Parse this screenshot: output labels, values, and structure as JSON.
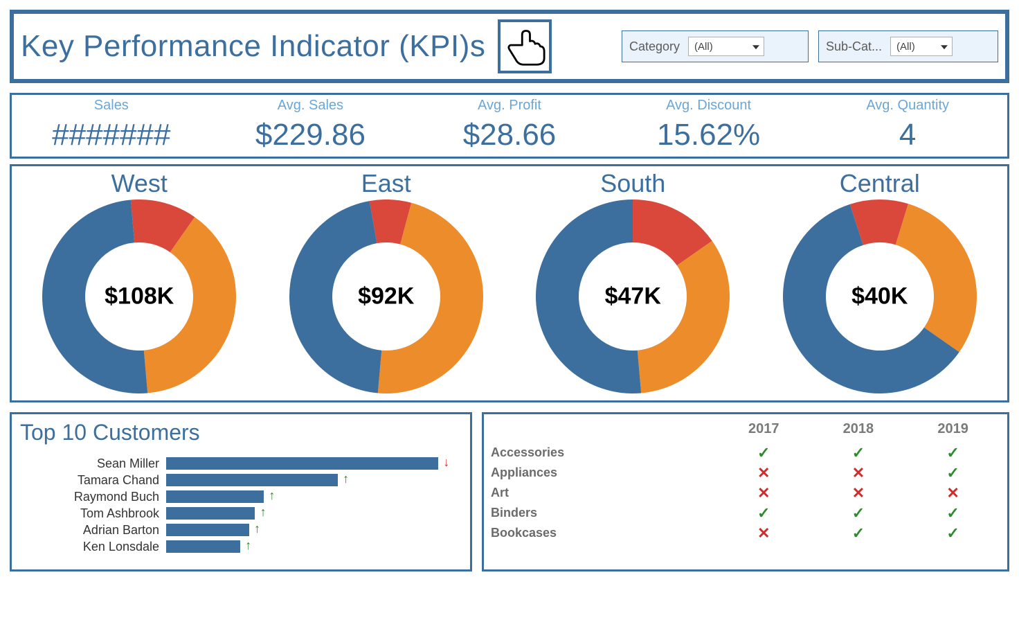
{
  "colors": {
    "frame": "#3d6f9e",
    "label_light": "#6aa7d6",
    "bar": "#3d6f9e",
    "donut_blue": "#3d6f9e",
    "donut_orange": "#ed8c2b",
    "donut_red": "#d9483b",
    "check": "#2e8b2e",
    "cross": "#d02c2c",
    "filter_bg": "#eaf3fb",
    "grey_text": "#6b6b6b"
  },
  "header": {
    "title": "Key Performance Indicator (KPI)s",
    "filters": [
      {
        "label": "Category",
        "value": "(All)"
      },
      {
        "label": "Sub-Cat...",
        "value": "(All)"
      }
    ]
  },
  "kpis": [
    {
      "label": "Sales",
      "value": "#######"
    },
    {
      "label": "Avg. Sales",
      "value": "$229.86"
    },
    {
      "label": "Avg. Profit",
      "value": "$28.66"
    },
    {
      "label": "Avg. Discount",
      "value": "15.62%"
    },
    {
      "label": "Avg. Quantity",
      "value": "4"
    }
  ],
  "donuts": {
    "ring_thickness": 62,
    "outer_radius": 140,
    "items": [
      {
        "title": "West",
        "center": "$108K",
        "slices": [
          {
            "color": "#d9483b",
            "start": -5,
            "sweep": 40
          },
          {
            "color": "#ed8c2b",
            "start": 35,
            "sweep": 140
          },
          {
            "color": "#3d6f9e",
            "start": 175,
            "sweep": 180
          }
        ]
      },
      {
        "title": "East",
        "center": "$92K",
        "slices": [
          {
            "color": "#d9483b",
            "start": -10,
            "sweep": 25
          },
          {
            "color": "#ed8c2b",
            "start": 15,
            "sweep": 170
          },
          {
            "color": "#3d6f9e",
            "start": 185,
            "sweep": 165
          }
        ]
      },
      {
        "title": "South",
        "center": "$47K",
        "slices": [
          {
            "color": "#d9483b",
            "start": 0,
            "sweep": 55
          },
          {
            "color": "#ed8c2b",
            "start": 55,
            "sweep": 120
          },
          {
            "color": "#3d6f9e",
            "start": 175,
            "sweep": 185
          }
        ]
      },
      {
        "title": "Central",
        "center": "$40K",
        "slices": [
          {
            "color": "#d9483b",
            "start": -18,
            "sweep": 35
          },
          {
            "color": "#ed8c2b",
            "start": 17,
            "sweep": 108
          },
          {
            "color": "#3d6f9e",
            "start": 125,
            "sweep": 217
          }
        ]
      }
    ]
  },
  "customers": {
    "title": "Top 10 Customers",
    "max_value": 100,
    "items": [
      {
        "name": "Sean Miller",
        "value": 92,
        "trend": "down"
      },
      {
        "name": "Tamara Chand",
        "value": 58,
        "trend": "up"
      },
      {
        "name": "Raymond Buch",
        "value": 33,
        "trend": "up"
      },
      {
        "name": "Tom Ashbrook",
        "value": 30,
        "trend": "up"
      },
      {
        "name": "Adrian Barton",
        "value": 28,
        "trend": "up"
      },
      {
        "name": "Ken Lonsdale",
        "value": 25,
        "trend": "up"
      }
    ]
  },
  "matrix": {
    "years": [
      "2017",
      "2018",
      "2019"
    ],
    "rows": [
      {
        "label": "Accessories",
        "cells": [
          "check",
          "check",
          "check"
        ]
      },
      {
        "label": "Appliances",
        "cells": [
          "cross",
          "cross",
          "check"
        ]
      },
      {
        "label": "Art",
        "cells": [
          "cross",
          "cross",
          "cross"
        ]
      },
      {
        "label": "Binders",
        "cells": [
          "check",
          "check",
          "check"
        ]
      },
      {
        "label": "Bookcases",
        "cells": [
          "cross",
          "check",
          "check"
        ]
      }
    ]
  }
}
